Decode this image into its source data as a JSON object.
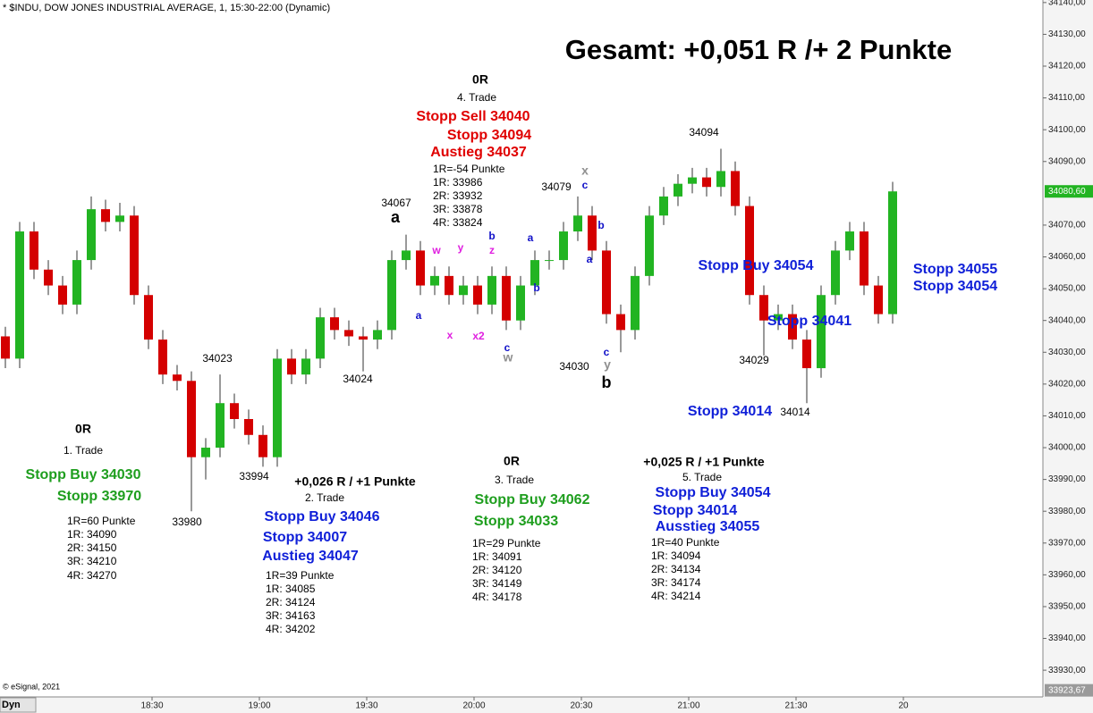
{
  "chart_data": {
    "type": "candlestick",
    "title": "* $INDU, DOW JONES INDUSTRIAL AVERAGE, 1, 15:30-22:00 (Dynamic)",
    "headline": "Gesamt: +0,051 R /+ 2 Punkte",
    "x": [
      "17:49",
      "17:53",
      "17:57",
      "18:01",
      "18:05",
      "18:09",
      "18:13",
      "18:17",
      "18:21",
      "18:25",
      "18:29",
      "18:33",
      "18:37",
      "18:41",
      "18:45",
      "18:49",
      "18:53",
      "18:57",
      "19:01",
      "19:05",
      "19:09",
      "19:13",
      "19:17",
      "19:21",
      "19:25",
      "19:29",
      "19:33",
      "19:37",
      "19:41",
      "19:45",
      "19:49",
      "19:53",
      "19:57",
      "20:01",
      "20:05",
      "20:09",
      "20:13",
      "20:17",
      "20:21",
      "20:25",
      "20:29",
      "20:33",
      "20:37",
      "20:41",
      "20:45",
      "20:49",
      "20:53",
      "20:57",
      "21:01",
      "21:05",
      "21:09",
      "21:13",
      "21:17",
      "21:21",
      "21:25",
      "21:29",
      "21:33",
      "21:37",
      "21:41",
      "21:45",
      "21:49",
      "21:53",
      "21:57"
    ],
    "open": [
      34035,
      34028,
      34068,
      34056,
      34051,
      34045,
      34059,
      34075,
      34071,
      34073,
      34048,
      34034,
      34023,
      34021,
      33997,
      34000,
      34014,
      34009,
      34004,
      33997,
      34028,
      34023,
      34028,
      34041,
      34037,
      34035,
      34034,
      34037,
      34059,
      34062,
      34051,
      34054,
      34048,
      34051,
      34045,
      34054,
      34040,
      34051,
      34059,
      34059,
      34068,
      34073,
      34062,
      34042,
      34037,
      34054,
      34073,
      34079,
      34083,
      34085,
      34082,
      34087,
      34076,
      34048,
      34040,
      34042,
      34034,
      34025,
      34048,
      34062,
      34068,
      34051,
      34042
    ],
    "high": [
      34038,
      34071,
      34071,
      34059,
      34054,
      34062,
      34079,
      34078,
      34077,
      34076,
      34051,
      34037,
      34026,
      34024,
      34003,
      34023,
      34017,
      34012,
      34007,
      34031,
      34031,
      34031,
      34044,
      34044,
      34040,
      34038,
      34040,
      34062,
      34067,
      34065,
      34057,
      34057,
      34054,
      34054,
      34057,
      34057,
      34054,
      34062,
      34062,
      34071,
      34079,
      34076,
      34065,
      34045,
      34057,
      34076,
      34082,
      34086,
      34088,
      34088,
      34094,
      34090,
      34079,
      34051,
      34045,
      34045,
      34037,
      34051,
      34065,
      34071,
      34071,
      34054,
      34083.6
    ],
    "low": [
      34025,
      34025,
      34053,
      34048,
      34042,
      34042,
      34056,
      34068,
      34068,
      34045,
      34031,
      34020,
      34018,
      33980,
      33990,
      33997,
      34006,
      34001,
      33994,
      33994,
      34020,
      34020,
      34025,
      34034,
      34032,
      34024,
      34031,
      34034,
      34056,
      34048,
      34048,
      34045,
      34045,
      34042,
      34042,
      34037,
      34037,
      34048,
      34056,
      34056,
      34065,
      34059,
      34039,
      34030,
      34034,
      34051,
      34070,
      34076,
      34080,
      34079,
      34079,
      34073,
      34045,
      34029,
      34037,
      34031,
      34014,
      34022,
      34045,
      34059,
      34048,
      34039,
      34039
    ],
    "close": [
      34028,
      34068,
      34056,
      34051,
      34045,
      34059,
      34075,
      34071,
      34073,
      34048,
      34034,
      34023,
      34021,
      33997,
      34000,
      34014,
      34009,
      34004,
      33997,
      34028,
      34023,
      34028,
      34041,
      34037,
      34035,
      34034,
      34037,
      34059,
      34062,
      34051,
      34054,
      34048,
      34051,
      34045,
      34054,
      34040,
      34051,
      34059,
      34059,
      34068,
      34073,
      34062,
      34042,
      34037,
      34054,
      34073,
      34079,
      34083,
      34085,
      34082,
      34087,
      34076,
      34048,
      34040,
      34042,
      34034,
      34025,
      34048,
      34062,
      34068,
      34051,
      34042,
      34080.6
    ],
    "colors": {
      "up": "#22b422",
      "down": "#d40000"
    },
    "xlim": [
      "17:48",
      "22:39"
    ],
    "xticks": [
      "18:30",
      "19:00",
      "19:30",
      "20:00",
      "20:30",
      "21:00",
      "21:30",
      {
        "value": "22:00",
        "label": "20"
      }
    ],
    "ylim": [
      33921.6,
      34140.8
    ],
    "yticks": [
      {
        "value": 33930,
        "label": "33930,00"
      },
      {
        "value": 33940,
        "label": "33940,00"
      },
      {
        "value": 33950,
        "label": "33950,00"
      },
      {
        "value": 33960,
        "label": "33960,00"
      },
      {
        "value": 33970,
        "label": "33970,00"
      },
      {
        "value": 33980,
        "label": "33980,00"
      },
      {
        "value": 33990,
        "label": "33990,00"
      },
      {
        "value": 34000,
        "label": "34000,00"
      },
      {
        "value": 34010,
        "label": "34010,00"
      },
      {
        "value": 34020,
        "label": "34020,00"
      },
      {
        "value": 34030,
        "label": "34030,00"
      },
      {
        "value": 34040,
        "label": "34040,00"
      },
      {
        "value": 34050,
        "label": "34050,00"
      },
      {
        "value": 34060,
        "label": "34060,00"
      },
      {
        "value": 34070,
        "label": "34070,00"
      },
      {
        "value": 34090,
        "label": "34090,00"
      },
      {
        "value": 34100,
        "label": "34100,00"
      },
      {
        "value": 34110,
        "label": "34110,00"
      },
      {
        "value": 34120,
        "label": "34120,00"
      },
      {
        "value": 34130,
        "label": "34130,00"
      },
      {
        "value": 34140,
        "label": "34140,00"
      }
    ],
    "last_price": {
      "value": 34080.6,
      "label": "34080,60"
    },
    "low_marker": {
      "value": 33923.67,
      "label": "33923,67"
    },
    "footer": "© eSignal, 2021",
    "dyn": "Dyn",
    "annotations": [
      "0R",
      "1. Trade",
      "Stopp Buy 34030",
      "Stopp 33970",
      "1R=60 Punkte",
      "1R: 34090",
      "2R: 34150",
      "3R: 34210",
      "4R: 34270",
      "+0,026 R / +1 Punkte",
      "2. Trade",
      "Stopp Buy 34046",
      "Stopp 34007",
      "Austieg 34047",
      "1R=39 Punkte",
      "1R: 34085",
      "2R: 34124",
      "3R: 34163",
      "4R: 34202",
      "0R",
      "3. Trade",
      "Stopp Buy 34062",
      "Stopp 34033",
      "1R=29 Punkte",
      "1R: 34091",
      "2R: 34120",
      "3R: 34149",
      "4R: 34178",
      "0R",
      "4. Trade",
      "Stopp Sell 34040",
      "Stopp 34094",
      "Austieg 34037",
      "1R=-54 Punkte",
      "1R: 33986",
      "2R: 33932",
      "3R: 33878",
      "4R: 33824",
      "+0,025 R / +1 Punkte",
      "5. Trade",
      "Stopp Buy 34054",
      "Stopp 34014",
      "Ausstieg 34055",
      "1R=40 Punkte",
      "1R: 34094",
      "2R: 34134",
      "3R: 34174",
      "4R: 34214",
      "Stopp Buy 34054",
      "Stopp 34041",
      "Stopp 34014",
      "Stopp 34055",
      "Stopp 34054",
      "34067",
      "a",
      "34023",
      "34024",
      "33994",
      "33980",
      "34079",
      "34030",
      "b",
      "34094",
      "34029",
      "34014",
      "a",
      "w",
      "y",
      "b",
      "z",
      "x",
      "x2",
      "c",
      "w",
      "a",
      "b",
      "x",
      "c",
      "b",
      "a",
      "c",
      "y"
    ]
  }
}
